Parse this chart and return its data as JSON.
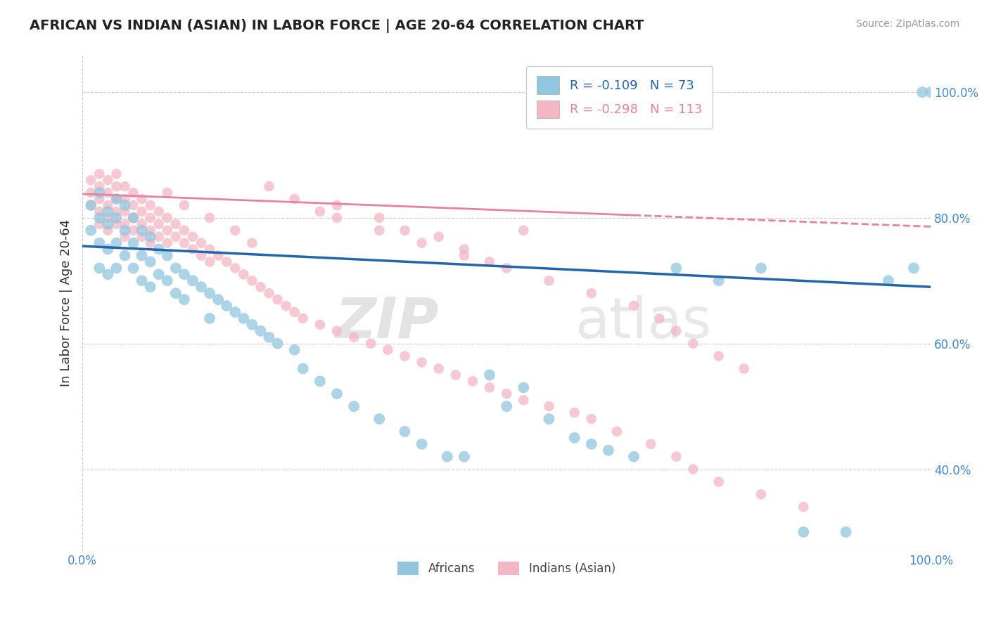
{
  "title": "AFRICAN VS INDIAN (ASIAN) IN LABOR FORCE | AGE 20-64 CORRELATION CHART",
  "source": "Source: ZipAtlas.com",
  "ylabel": "In Labor Force | Age 20-64",
  "blue_R": -0.109,
  "blue_N": 73,
  "pink_R": -0.298,
  "pink_N": 113,
  "blue_color": "#92c5de",
  "pink_color": "#f4b6c2",
  "blue_line_color": "#2166ac",
  "pink_line_color": "#e8829a",
  "watermark_zip": "ZIP",
  "watermark_atlas": "atlas",
  "legend_label_blue": "Africans",
  "legend_label_pink": "Indians (Asian)",
  "xmin": 0.0,
  "xmax": 1.0,
  "ymin": 0.27,
  "ymax": 1.06,
  "yticks": [
    0.4,
    0.6,
    0.8,
    1.0
  ],
  "ytick_labels": [
    "40.0%",
    "60.0%",
    "80.0%",
    "100.0%"
  ],
  "xticks": [
    0.0,
    0.25,
    0.5,
    0.75,
    1.0
  ],
  "xtick_labels": [
    "0.0%",
    "",
    "",
    "",
    "100.0%"
  ],
  "blue_intercept": 0.755,
  "blue_slope": -0.065,
  "pink_intercept": 0.838,
  "pink_slope": -0.052,
  "blue_x_points": [
    0.01,
    0.01,
    0.02,
    0.02,
    0.02,
    0.02,
    0.03,
    0.03,
    0.03,
    0.03,
    0.04,
    0.04,
    0.04,
    0.04,
    0.05,
    0.05,
    0.05,
    0.06,
    0.06,
    0.06,
    0.07,
    0.07,
    0.07,
    0.08,
    0.08,
    0.08,
    0.09,
    0.09,
    0.1,
    0.1,
    0.11,
    0.11,
    0.12,
    0.12,
    0.13,
    0.14,
    0.15,
    0.15,
    0.16,
    0.17,
    0.18,
    0.19,
    0.2,
    0.21,
    0.22,
    0.23,
    0.25,
    0.26,
    0.28,
    0.3,
    0.32,
    0.35,
    0.38,
    0.4,
    0.43,
    0.45,
    0.5,
    0.55,
    0.6,
    0.65,
    0.7,
    0.75,
    0.8,
    0.85,
    0.9,
    0.95,
    0.98,
    0.99,
    1.0,
    0.48,
    0.52,
    0.58,
    0.62
  ],
  "blue_y_points": [
    0.82,
    0.78,
    0.84,
    0.8,
    0.76,
    0.72,
    0.81,
    0.79,
    0.75,
    0.71,
    0.83,
    0.8,
    0.76,
    0.72,
    0.82,
    0.78,
    0.74,
    0.8,
    0.76,
    0.72,
    0.78,
    0.74,
    0.7,
    0.77,
    0.73,
    0.69,
    0.75,
    0.71,
    0.74,
    0.7,
    0.72,
    0.68,
    0.71,
    0.67,
    0.7,
    0.69,
    0.68,
    0.64,
    0.67,
    0.66,
    0.65,
    0.64,
    0.63,
    0.62,
    0.61,
    0.6,
    0.59,
    0.56,
    0.54,
    0.52,
    0.5,
    0.48,
    0.46,
    0.44,
    0.42,
    0.42,
    0.5,
    0.48,
    0.44,
    0.42,
    0.72,
    0.7,
    0.72,
    0.3,
    0.3,
    0.7,
    0.72,
    1.0,
    1.0,
    0.55,
    0.53,
    0.45,
    0.43
  ],
  "pink_x_points": [
    0.01,
    0.01,
    0.01,
    0.02,
    0.02,
    0.02,
    0.02,
    0.02,
    0.03,
    0.03,
    0.03,
    0.03,
    0.03,
    0.04,
    0.04,
    0.04,
    0.04,
    0.04,
    0.05,
    0.05,
    0.05,
    0.05,
    0.05,
    0.06,
    0.06,
    0.06,
    0.06,
    0.07,
    0.07,
    0.07,
    0.07,
    0.08,
    0.08,
    0.08,
    0.08,
    0.09,
    0.09,
    0.09,
    0.1,
    0.1,
    0.1,
    0.11,
    0.11,
    0.12,
    0.12,
    0.13,
    0.13,
    0.14,
    0.14,
    0.15,
    0.15,
    0.16,
    0.17,
    0.18,
    0.19,
    0.2,
    0.21,
    0.22,
    0.23,
    0.24,
    0.25,
    0.26,
    0.28,
    0.3,
    0.32,
    0.34,
    0.36,
    0.38,
    0.4,
    0.42,
    0.44,
    0.46,
    0.48,
    0.5,
    0.52,
    0.55,
    0.58,
    0.6,
    0.63,
    0.67,
    0.7,
    0.72,
    0.75,
    0.8,
    0.85,
    0.52,
    0.3,
    0.35,
    0.38,
    0.42,
    0.45,
    0.48,
    0.22,
    0.25,
    0.28,
    0.1,
    0.12,
    0.15,
    0.18,
    0.2,
    0.3,
    0.35,
    0.4,
    0.45,
    0.5,
    0.55,
    0.6,
    0.65,
    0.68,
    0.7,
    0.72,
    0.75,
    0.78
  ],
  "pink_y_points": [
    0.86,
    0.84,
    0.82,
    0.87,
    0.85,
    0.83,
    0.81,
    0.79,
    0.86,
    0.84,
    0.82,
    0.8,
    0.78,
    0.87,
    0.85,
    0.83,
    0.81,
    0.79,
    0.85,
    0.83,
    0.81,
    0.79,
    0.77,
    0.84,
    0.82,
    0.8,
    0.78,
    0.83,
    0.81,
    0.79,
    0.77,
    0.82,
    0.8,
    0.78,
    0.76,
    0.81,
    0.79,
    0.77,
    0.8,
    0.78,
    0.76,
    0.79,
    0.77,
    0.78,
    0.76,
    0.77,
    0.75,
    0.76,
    0.74,
    0.75,
    0.73,
    0.74,
    0.73,
    0.72,
    0.71,
    0.7,
    0.69,
    0.68,
    0.67,
    0.66,
    0.65,
    0.64,
    0.63,
    0.62,
    0.61,
    0.6,
    0.59,
    0.58,
    0.57,
    0.56,
    0.55,
    0.54,
    0.53,
    0.52,
    0.51,
    0.5,
    0.49,
    0.48,
    0.46,
    0.44,
    0.42,
    0.4,
    0.38,
    0.36,
    0.34,
    0.78,
    0.82,
    0.8,
    0.78,
    0.77,
    0.75,
    0.73,
    0.85,
    0.83,
    0.81,
    0.84,
    0.82,
    0.8,
    0.78,
    0.76,
    0.8,
    0.78,
    0.76,
    0.74,
    0.72,
    0.7,
    0.68,
    0.66,
    0.64,
    0.62,
    0.6,
    0.58,
    0.56
  ]
}
